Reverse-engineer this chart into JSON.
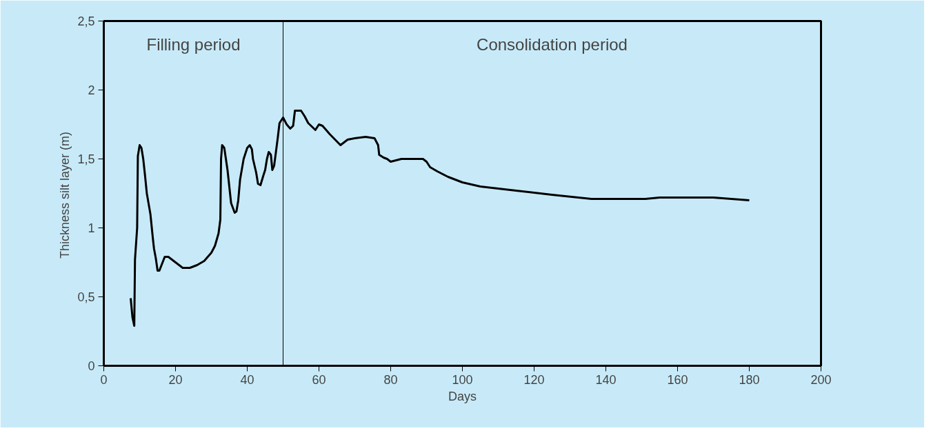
{
  "chart_data": {
    "type": "line",
    "xlabel": "Days",
    "ylabel": "Thickness silt layer  (m)",
    "x": [
      7.5,
      8,
      8.5,
      8.7,
      9.3,
      9.5,
      10,
      10.5,
      11,
      11.5,
      12,
      13,
      13.7,
      14,
      14.5,
      15,
      15.5,
      17,
      18,
      20,
      22,
      24,
      26,
      28,
      30,
      31,
      32,
      32.5,
      32.7,
      33,
      33.6,
      34.5,
      35,
      35.5,
      36.5,
      37,
      37.5,
      38,
      39,
      40,
      40.7,
      41.3,
      41.6,
      42.5,
      43,
      43.7,
      44.5,
      45,
      45.5,
      46,
      46.6,
      47,
      47.5,
      48,
      48.5,
      49,
      50,
      51,
      52,
      52.8,
      53.3,
      55,
      56,
      57,
      59,
      60,
      61,
      63,
      66,
      68,
      70,
      73,
      75.5,
      76.5,
      76.8,
      78,
      79,
      80,
      83,
      89,
      90,
      91,
      93,
      96,
      100,
      105,
      115,
      125,
      136,
      151,
      155,
      170,
      180
    ],
    "series": [
      {
        "color": "#000000",
        "values": [
          0.49,
          0.35,
          0.29,
          0.77,
          1.0,
          1.52,
          1.6,
          1.58,
          1.5,
          1.38,
          1.25,
          1.1,
          0.92,
          0.85,
          0.78,
          0.69,
          0.69,
          0.79,
          0.79,
          0.75,
          0.71,
          0.71,
          0.73,
          0.76,
          0.82,
          0.87,
          0.96,
          1.06,
          1.5,
          1.6,
          1.58,
          1.42,
          1.3,
          1.18,
          1.11,
          1.12,
          1.2,
          1.35,
          1.5,
          1.58,
          1.6,
          1.57,
          1.5,
          1.4,
          1.32,
          1.31,
          1.38,
          1.42,
          1.5,
          1.55,
          1.53,
          1.42,
          1.45,
          1.55,
          1.65,
          1.76,
          1.8,
          1.75,
          1.72,
          1.74,
          1.85,
          1.85,
          1.81,
          1.76,
          1.71,
          1.75,
          1.74,
          1.68,
          1.6,
          1.64,
          1.65,
          1.66,
          1.65,
          1.6,
          1.53,
          1.51,
          1.5,
          1.48,
          1.5,
          1.5,
          1.48,
          1.44,
          1.41,
          1.37,
          1.33,
          1.3,
          1.27,
          1.24,
          1.21,
          1.21,
          1.22,
          1.22,
          1.2
        ]
      }
    ],
    "xlim": [
      0,
      200
    ],
    "xticks": [
      0,
      20,
      40,
      60,
      80,
      100,
      120,
      140,
      160,
      180,
      200
    ],
    "ylim": [
      0,
      2.5
    ],
    "yticks": [
      0,
      {
        "value": 0.5,
        "label": "0,5"
      },
      1,
      {
        "value": 1.5,
        "label": "1,5"
      },
      2,
      {
        "value": 2.5,
        "label": "2,5"
      }
    ],
    "ref_lines": [
      {
        "axis": "x",
        "value": 50,
        "color": "#000000"
      }
    ],
    "annotations": [
      "Filling period",
      "Consolidation period"
    ],
    "grid": false,
    "line_style": "solid",
    "marker": "none"
  }
}
